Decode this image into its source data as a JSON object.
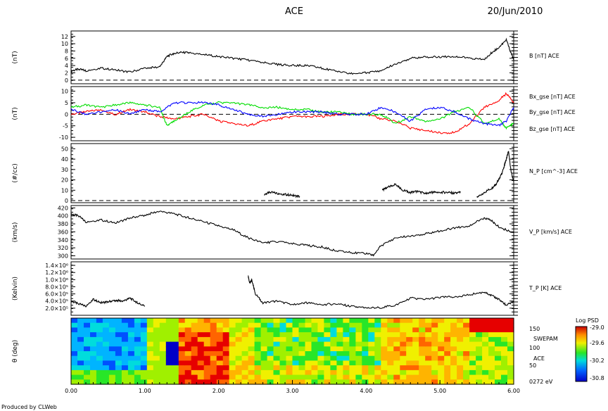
{
  "header": {
    "title": "ACE",
    "date": "20/Jun/2010"
  },
  "footer": {
    "credit": "Produced by CLWeb"
  },
  "colors": {
    "bx": "#ff0000",
    "by": "#00dd00",
    "bz": "#0000ff",
    "trace": "#000000",
    "footer": "#0000aa"
  },
  "chart_data": [
    {
      "type": "line",
      "id": "b",
      "ylabel": "(nT)",
      "ylim": [
        -1,
        13.5
      ],
      "yticks": [
        0,
        2,
        4,
        6,
        8,
        10,
        12
      ],
      "zero_line": true,
      "series": [
        {
          "name": "B [nT] ACE",
          "color": "#000000",
          "x": [
            0,
            0.1,
            0.2,
            0.4,
            0.6,
            0.8,
            1.0,
            1.2,
            1.3,
            1.4,
            1.5,
            1.6,
            1.8,
            2.0,
            2.2,
            2.4,
            2.6,
            2.8,
            3.0,
            3.2,
            3.4,
            3.6,
            3.8,
            4.0,
            4.2,
            4.4,
            4.6,
            4.8,
            5.0,
            5.2,
            5.4,
            5.6,
            5.7,
            5.8,
            5.9,
            6.0
          ],
          "y": [
            2.5,
            3,
            2.6,
            3.3,
            2.8,
            2.2,
            3.3,
            3.6,
            6.5,
            7.4,
            7.6,
            7.5,
            7,
            6.5,
            6,
            5.5,
            4.8,
            4.3,
            4,
            4,
            3.3,
            2.3,
            1.8,
            2,
            2.6,
            4.5,
            6,
            6.3,
            6.4,
            6.5,
            6,
            5.6,
            7.5,
            9,
            11,
            5.5
          ]
        }
      ]
    },
    {
      "type": "line",
      "id": "bvec",
      "ylabel": "(nT)",
      "ylim": [
        -11.5,
        12
      ],
      "yticks": [
        -10,
        -5,
        0,
        5,
        10
      ],
      "zero_line": true,
      "series": [
        {
          "name": "Bx_gse [nT] ACE",
          "color": "#ff0000",
          "x": [
            0,
            0.2,
            0.4,
            0.6,
            0.8,
            1.0,
            1.2,
            1.4,
            1.6,
            1.8,
            2.0,
            2.2,
            2.4,
            2.6,
            2.8,
            3.0,
            3.2,
            3.4,
            3.6,
            3.8,
            4.0,
            4.2,
            4.4,
            4.6,
            4.8,
            5.0,
            5.2,
            5.4,
            5.6,
            5.8,
            5.9,
            6.0
          ],
          "y": [
            0,
            1,
            2,
            0,
            2,
            1,
            -1,
            -2,
            -1,
            0,
            -3,
            -4,
            -5,
            -3,
            -2,
            -1,
            -1,
            -1,
            0,
            0,
            0,
            -2,
            -3,
            -6,
            -7,
            -8,
            -8,
            -4,
            3,
            6,
            9,
            5
          ]
        },
        {
          "name": "By_gse [nT] ACE",
          "color": "#00dd00",
          "x": [
            0,
            0.2,
            0.4,
            0.6,
            0.8,
            1.0,
            1.2,
            1.3,
            1.4,
            1.6,
            1.8,
            2.0,
            2.2,
            2.4,
            2.6,
            2.8,
            3.0,
            3.2,
            3.4,
            3.6,
            3.8,
            4.0,
            4.2,
            4.4,
            4.6,
            4.8,
            5.0,
            5.2,
            5.4,
            5.6,
            5.8,
            5.9,
            6.0
          ],
          "y": [
            3,
            4,
            3,
            4,
            5,
            4,
            3,
            -5,
            -3,
            1,
            4,
            5,
            5,
            4,
            3,
            3,
            2,
            2,
            1,
            1,
            0,
            0,
            0,
            -4,
            -1,
            -3,
            -2,
            1,
            3,
            -4,
            -2,
            -6,
            -4
          ]
        },
        {
          "name": "Bz_gse [nT] ACE",
          "color": "#0000ff",
          "x": [
            0,
            0.2,
            0.4,
            0.6,
            0.8,
            1.0,
            1.2,
            1.4,
            1.6,
            1.8,
            2.0,
            2.2,
            2.4,
            2.6,
            2.8,
            3.0,
            3.2,
            3.4,
            3.6,
            3.8,
            4.0,
            4.2,
            4.4,
            4.6,
            4.8,
            5.0,
            5.2,
            5.4,
            5.6,
            5.8,
            5.9,
            6.0
          ],
          "y": [
            2,
            0,
            1,
            2,
            0,
            2,
            1,
            5,
            5,
            5,
            4,
            2,
            0,
            -1,
            0,
            1,
            1,
            1,
            0,
            0,
            0,
            3,
            1,
            -3,
            2,
            3,
            1,
            -2,
            -4,
            -5,
            -3,
            3
          ]
        }
      ]
    },
    {
      "type": "line",
      "id": "np",
      "ylabel": "(#/cc)",
      "ylim": [
        -2,
        55
      ],
      "yticks": [
        0,
        10,
        20,
        30,
        40,
        50
      ],
      "zero_line": true,
      "series": [
        {
          "name": "N_P [cm^-3] ACE",
          "color": "#000000",
          "segments": [
            {
              "x": [
                2.62,
                2.7,
                2.8,
                2.9,
                3.0,
                3.1
              ],
              "y": [
                6,
                8,
                7,
                6,
                5,
                4
              ]
            },
            {
              "x": [
                4.22,
                4.3,
                4.4,
                4.5,
                4.6,
                4.7,
                4.8,
                4.9,
                5.0,
                5.1,
                5.2,
                5.28
              ],
              "y": [
                10,
                13,
                16,
                10,
                8,
                9,
                7,
                8,
                8,
                8,
                7,
                8
              ]
            },
            {
              "x": [
                5.5,
                5.6,
                5.7,
                5.75,
                5.8,
                5.85,
                5.9,
                5.93,
                5.96,
                6.0
              ],
              "y": [
                3,
                8,
                12,
                15,
                20,
                28,
                40,
                48,
                30,
                18
              ]
            }
          ]
        }
      ]
    },
    {
      "type": "line",
      "id": "vp",
      "ylabel": "(km/s)",
      "ylim": [
        292,
        426
      ],
      "yticks": [
        300,
        320,
        340,
        360,
        380,
        400,
        420
      ],
      "series": [
        {
          "name": "V_P [km/s] ACE",
          "color": "#000000",
          "x": [
            0,
            0.1,
            0.2,
            0.4,
            0.6,
            0.8,
            1.0,
            1.2,
            1.4,
            1.6,
            1.8,
            2.0,
            2.2,
            2.4,
            2.6,
            2.8,
            3.0,
            3.2,
            3.4,
            3.6,
            3.8,
            4.0,
            4.1,
            4.2,
            4.4,
            4.6,
            4.8,
            5.0,
            5.2,
            5.4,
            5.6,
            5.7,
            5.8,
            6.0
          ],
          "y": [
            405,
            400,
            385,
            390,
            382,
            395,
            402,
            412,
            405,
            395,
            385,
            375,
            365,
            345,
            332,
            336,
            330,
            326,
            322,
            312,
            308,
            305,
            302,
            325,
            345,
            350,
            355,
            362,
            370,
            375,
            395,
            388,
            372,
            358
          ]
        }
      ]
    },
    {
      "type": "line",
      "id": "tp",
      "ylabel": "(Kelvin)",
      "ylim": [
        0,
        1500000
      ],
      "yticks": [
        200000,
        400000,
        600000,
        800000,
        1000000,
        1200000,
        1400000
      ],
      "yticklabels": [
        "2.0×10⁵",
        "4.0×10⁵",
        "6.0×10⁵",
        "8.0×10⁵",
        "1.0×10⁶",
        "1.2×10⁶",
        "1.4×10⁶"
      ],
      "series": [
        {
          "name": "T_P [K] ACE",
          "color": "#000000",
          "segments": [
            {
              "x": [
                0,
                0.1,
                0.2,
                0.3,
                0.4,
                0.5,
                0.6,
                0.7,
                0.8,
                0.9,
                1.0
              ],
              "y": [
                400000,
                320000,
                260000,
                450000,
                350000,
                380000,
                420000,
                400000,
                480000,
                350000,
                250000
              ]
            },
            {
              "x": [
                2.4,
                2.42,
                2.45,
                2.5,
                2.6,
                2.8,
                3.0,
                3.2,
                3.4,
                3.6,
                3.8,
                4.0,
                4.2,
                4.4,
                4.6,
                4.8,
                5.0,
                5.2,
                5.4,
                5.6,
                5.7,
                5.8,
                5.9,
                6.0
              ],
              "y": [
                1100000,
                900000,
                1000000,
                600000,
                350000,
                400000,
                300000,
                350000,
                300000,
                320000,
                250000,
                200000,
                220000,
                280000,
                480000,
                450000,
                500000,
                520000,
                580000,
                650000,
                550000,
                450000,
                280000,
                380000
              ]
            }
          ]
        }
      ]
    },
    {
      "type": "heatmap",
      "id": "pad",
      "ylabel": "θ (deg)",
      "right_labels": [
        "150",
        "SWEPAM",
        "100",
        "ACE",
        "50",
        "0272 eV"
      ],
      "colorbar_title": "Log PSD",
      "colorbar_ticks": [
        "-29.0",
        "-29.6",
        "-30.2",
        "-30.8"
      ],
      "legend": "right"
    }
  ],
  "xaxis": {
    "ticks": [
      "0.00",
      "1.00",
      "2.00",
      "3.00",
      "4.00",
      "5.00",
      "6.00"
    ],
    "xlim": [
      0,
      6
    ]
  }
}
